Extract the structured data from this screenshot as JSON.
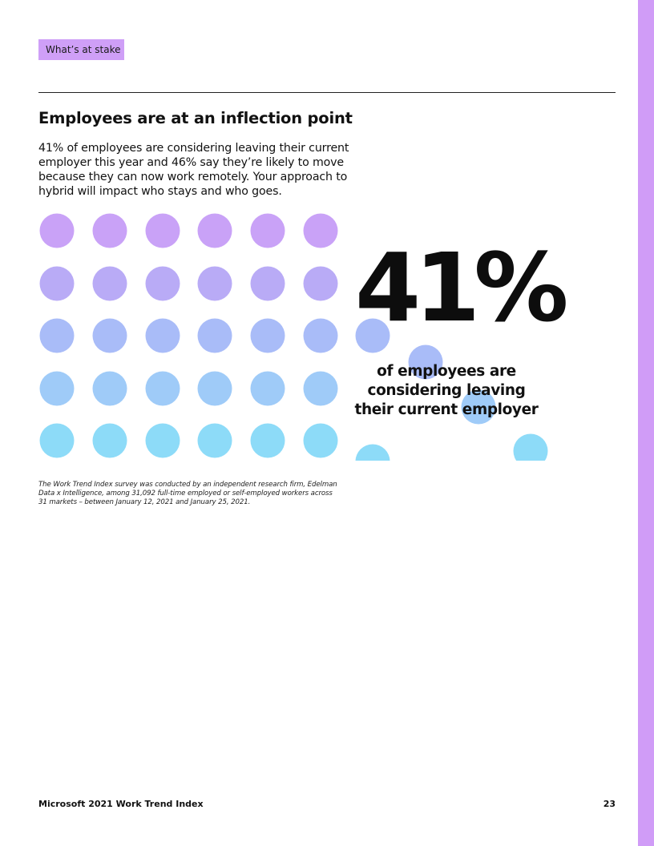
{
  "section_tag": "What’s at stake",
  "headline": "Employees are at an inflection point",
  "intro": "41% of employees are considering leaving their current employer this year and 46% say they’re likely to move because they can now work remotely. Your approach to hybrid will impact who stays and who goes.",
  "stat": {
    "value": "41%",
    "caption": "of employees are considering leaving their current employer",
    "fraction": 0.41
  },
  "colors": {
    "accent": "#d09cf7",
    "dot_rows": [
      "#c9a2f7",
      "#b9abf6",
      "#a9bcf8",
      "#9fcbf8",
      "#8ddbf8"
    ]
  },
  "footnote": "The Work Trend Index survey was conducted by an independent research firm, Edelman Data x Intelligence, among 31,092 full-time employed or self-employed workers across 31 markets – between January 12, 2021 and January 25, 2021.",
  "footer": {
    "publication": "Microsoft 2021 Work Trend Index",
    "page_number": "23"
  }
}
